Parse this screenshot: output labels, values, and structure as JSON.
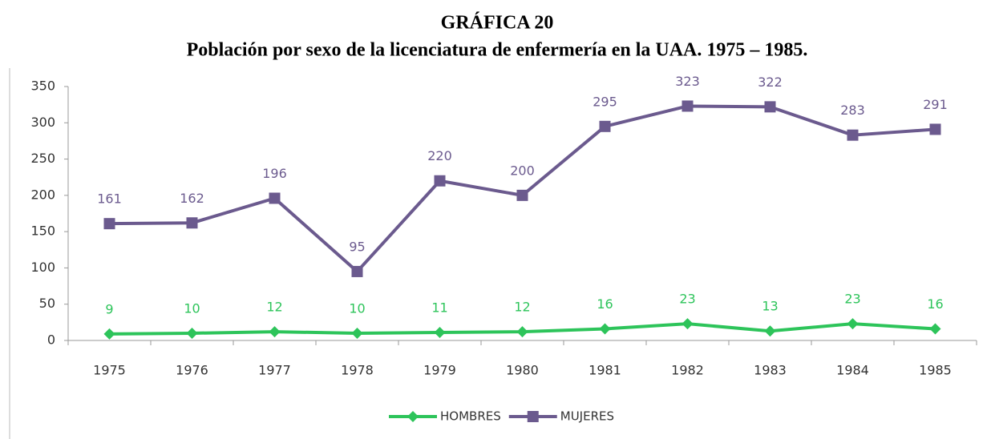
{
  "chart_data": {
    "type": "line",
    "title": "GRÁFICA 20",
    "subtitle": "Población por sexo de la licenciatura de enfermería en la UAA. 1975 – 1985.",
    "categories": [
      "1975",
      "1976",
      "1977",
      "1978",
      "1979",
      "1980",
      "1981",
      "1982",
      "1983",
      "1984",
      "1985"
    ],
    "series": [
      {
        "name": "HOMBRES",
        "color": "#2dc45a",
        "marker": "diamond",
        "values": [
          9,
          10,
          12,
          10,
          11,
          12,
          16,
          23,
          13,
          23,
          16
        ]
      },
      {
        "name": "MUJERES",
        "color": "#6b5a8e",
        "marker": "square",
        "values": [
          161,
          162,
          196,
          95,
          220,
          200,
          295,
          323,
          322,
          283,
          291
        ]
      }
    ],
    "ylim": [
      0,
      350
    ],
    "yticks": [
      0,
      50,
      100,
      150,
      200,
      250,
      300,
      350
    ],
    "legend": "bottom",
    "data_labels": true
  }
}
